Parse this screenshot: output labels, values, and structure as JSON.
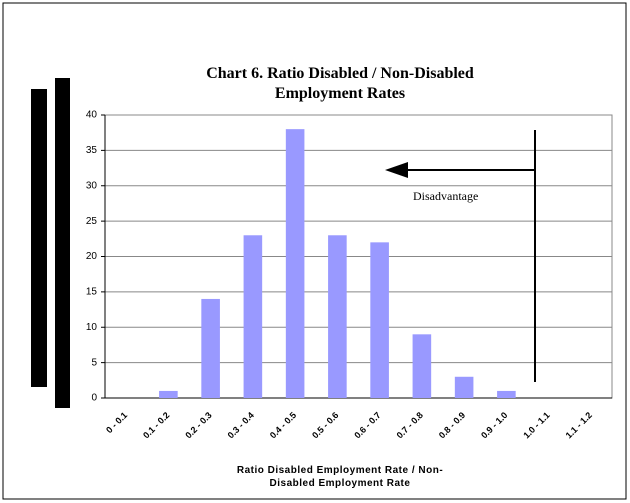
{
  "chart_data": {
    "type": "bar",
    "title": "Chart 6. Ratio Disabled / Non-Disabled Employment Rates",
    "x_label": "Ratio Disabled Employment Rate / Non-Disabled Employment Rate",
    "annotation": "Disadvantage",
    "categories": [
      "0 - 0.1",
      "0.1 - 0.2",
      "0.2 - 0.3",
      "0.3 - 0.4",
      "0.4 - 0.5",
      "0.5 - 0.6",
      "0.6 - 0.7",
      "0.7 - 0.8",
      "0.8 - 0.9",
      "0.9 - 1.0",
      "1.0 - 1.1",
      "1.1 - 1.2"
    ],
    "values": [
      0,
      1,
      14,
      23,
      38,
      23,
      22,
      9,
      3,
      1,
      0,
      0
    ],
    "color": "#9999ff",
    "ylim": [
      0,
      40
    ],
    "yticks": [
      0,
      5,
      10,
      15,
      20,
      25,
      30,
      35,
      40
    ],
    "grid": true
  }
}
